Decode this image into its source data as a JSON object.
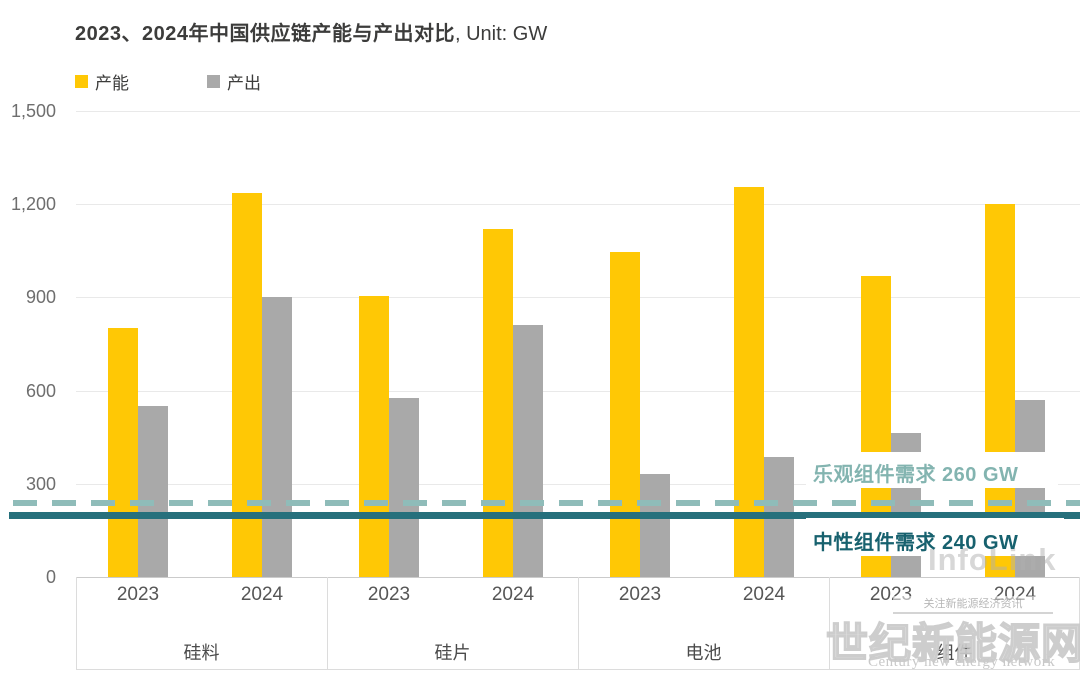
{
  "title": {
    "main": "2023、2024年中国供应链产能与产出对比",
    "unit": ", Unit: GW"
  },
  "legend": [
    {
      "label": "产能",
      "color": "#FFC805"
    },
    {
      "label": "产出",
      "color": "#A9A9A9"
    }
  ],
  "chart_data": {
    "type": "bar",
    "title": "2023、2024年中国供应链产能与产出对比",
    "unit": "GW",
    "xlabel": "",
    "ylabel": "",
    "ylim": [
      0,
      1500
    ],
    "grid": "horizontal",
    "legend_position": "top-left",
    "y_ticks": [
      {
        "value": 0,
        "label": "0"
      },
      {
        "value": 300,
        "label": "300"
      },
      {
        "value": 600,
        "label": "600"
      },
      {
        "value": 900,
        "label": "900"
      },
      {
        "value": 1200,
        "label": "1,200"
      },
      {
        "value": 1500,
        "label": "1,500"
      }
    ],
    "series_names": [
      "产能",
      "产出"
    ],
    "series_keys": [
      "capacity",
      "output"
    ],
    "series_colors": [
      "#FFC805",
      "#A9A9A9"
    ],
    "groups": [
      {
        "category": "硅料",
        "pairs": [
          {
            "year": "2023",
            "values": [
              800,
              550
            ]
          },
          {
            "year": "2024",
            "values": [
              1235,
              900
            ]
          }
        ]
      },
      {
        "category": "硅片",
        "pairs": [
          {
            "year": "2023",
            "values": [
              905,
              575
            ]
          },
          {
            "year": "2024",
            "values": [
              1120,
              810
            ]
          }
        ]
      },
      {
        "category": "电池",
        "pairs": [
          {
            "year": "2023",
            "values": [
              1045,
              330
            ]
          },
          {
            "year": "2024",
            "values": [
              1255,
              385
            ]
          }
        ]
      },
      {
        "category": "组件",
        "pairs": [
          {
            "year": "2023",
            "values": [
              970,
              465
            ]
          },
          {
            "year": "2024",
            "values": [
              1200,
              570
            ]
          }
        ]
      }
    ],
    "reference_lines": [
      {
        "label": "乐观组件需求 260 GW",
        "value": 260,
        "style": "dashed",
        "color": "#8FBCB9",
        "text_color": "#83B4B0",
        "position_gw": 238
      },
      {
        "label": "中性组件需求 240 GW",
        "value": 240,
        "style": "solid",
        "color": "#26707C",
        "text_color": "#17616E",
        "position_gw": 201
      }
    ]
  },
  "watermarks": {
    "infolink": "InfoLink",
    "banner": "关注新能源经济资讯",
    "site_cn": "世纪新能源网",
    "site_en": "Century new energy network"
  }
}
